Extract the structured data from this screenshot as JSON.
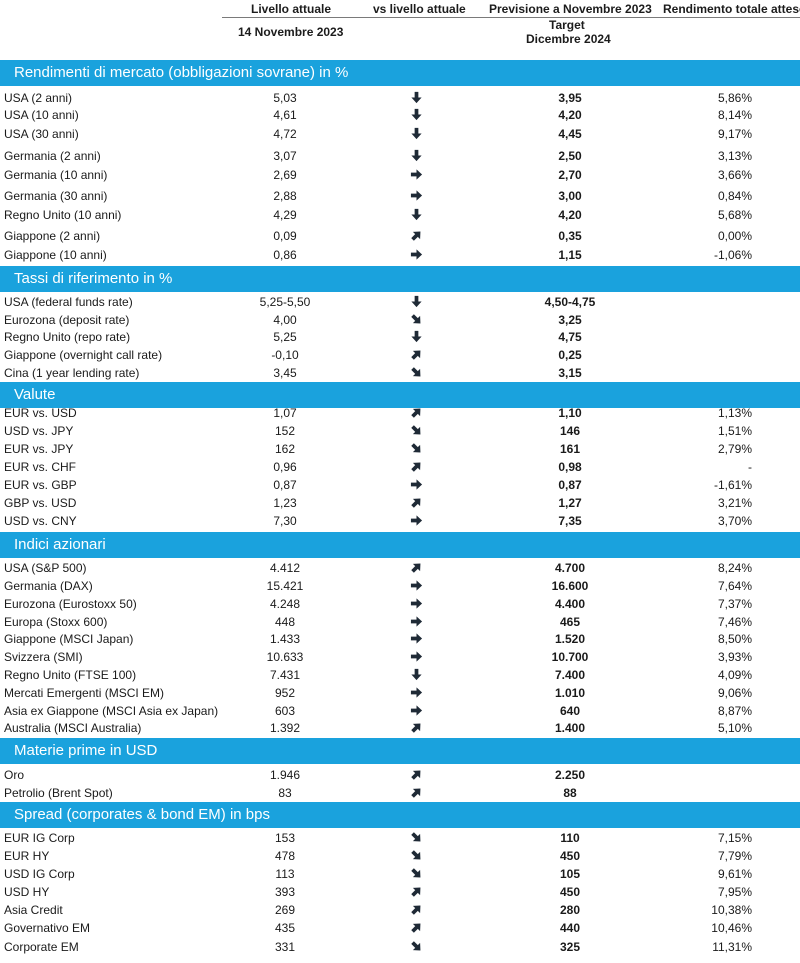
{
  "header": {
    "col_current": "Livello attuale",
    "col_vs": "vs livello attuale",
    "col_forecast": "Previsione a Novembre 2023",
    "col_return": "Rendimento totale atteso",
    "current_date": "14 Novembre 2023",
    "target_line1": "Target",
    "target_line2": "Dicembre 2024"
  },
  "sections": [
    {
      "title": "Rendimenti di mercato (obbligazioni sovrane) in %",
      "rows": [
        {
          "name": "USA (2 anni)",
          "current": "5,03",
          "arrow": "down",
          "target": "3,95",
          "ret": "5,86%"
        },
        {
          "name": "USA (10 anni)",
          "current": "4,61",
          "arrow": "down",
          "target": "4,20",
          "ret": "8,14%"
        },
        {
          "name": "USA (30 anni)",
          "current": "4,72",
          "arrow": "down",
          "target": "4,45",
          "ret": "9,17%"
        },
        {
          "name": "Germania (2 anni)",
          "current": "3,07",
          "arrow": "down",
          "target": "2,50",
          "ret": "3,13%"
        },
        {
          "name": "Germania (10 anni)",
          "current": "2,69",
          "arrow": "right",
          "target": "2,70",
          "ret": "3,66%"
        },
        {
          "name": "Germania (30 anni)",
          "current": "2,88",
          "arrow": "right",
          "target": "3,00",
          "ret": "0,84%"
        },
        {
          "name": "Regno Unito (10 anni)",
          "current": "4,29",
          "arrow": "down",
          "target": "4,20",
          "ret": "5,68%"
        },
        {
          "name": "Giappone (2 anni)",
          "current": "0,09",
          "arrow": "upright",
          "target": "0,35",
          "ret": "0,00%"
        },
        {
          "name": "Giappone (10 anni)",
          "current": "0,86",
          "arrow": "right",
          "target": "1,15",
          "ret": "-1,06%"
        }
      ]
    },
    {
      "title": "Tassi di riferimento in %",
      "rows": [
        {
          "name": "USA (federal funds rate)",
          "current": "5,25-5,50",
          "arrow": "down",
          "target": "4,50-4,75",
          "ret": ""
        },
        {
          "name": "Eurozona (deposit rate)",
          "current": "4,00",
          "arrow": "downright",
          "target": "3,25",
          "ret": ""
        },
        {
          "name": "Regno Unito (repo rate)",
          "current": "5,25",
          "arrow": "down",
          "target": "4,75",
          "ret": ""
        },
        {
          "name": "Giappone (overnight call rate)",
          "current": "-0,10",
          "arrow": "upright",
          "target": "0,25",
          "ret": ""
        },
        {
          "name": "Cina (1 year lending rate)",
          "current": "3,45",
          "arrow": "downright",
          "target": "3,15",
          "ret": ""
        }
      ]
    },
    {
      "title": "Valute",
      "rows": [
        {
          "name": "EUR vs. USD",
          "current": "1,07",
          "arrow": "upright",
          "target": "1,10",
          "ret": "1,13%"
        },
        {
          "name": "USD vs. JPY",
          "current": "152",
          "arrow": "downright",
          "target": "146",
          "ret": "1,51%"
        },
        {
          "name": "EUR vs. JPY",
          "current": "162",
          "arrow": "downright",
          "target": "161",
          "ret": "2,79%"
        },
        {
          "name": "EUR vs. CHF",
          "current": "0,96",
          "arrow": "upright",
          "target": "0,98",
          "ret": "-"
        },
        {
          "name": "EUR vs. GBP",
          "current": "0,87",
          "arrow": "right",
          "target": "0,87",
          "ret": "-1,61%"
        },
        {
          "name": "GBP vs. USD",
          "current": "1,23",
          "arrow": "upright",
          "target": "1,27",
          "ret": "3,21%"
        },
        {
          "name": "USD vs. CNY",
          "current": "7,30",
          "arrow": "right",
          "target": "7,35",
          "ret": "3,70%"
        }
      ]
    },
    {
      "title": "Indici azionari",
      "rows": [
        {
          "name": "USA (S&P 500)",
          "current": "4.412",
          "arrow": "upright",
          "target": "4.700",
          "ret": "8,24%"
        },
        {
          "name": "Germania (DAX)",
          "current": "15.421",
          "arrow": "right",
          "target": "16.600",
          "ret": "7,64%"
        },
        {
          "name": "Eurozona (Eurostoxx 50)",
          "current": "4.248",
          "arrow": "right",
          "target": "4.400",
          "ret": "7,37%"
        },
        {
          "name": "Europa (Stoxx 600)",
          "current": "448",
          "arrow": "right",
          "target": "465",
          "ret": "7,46%"
        },
        {
          "name": "Giappone (MSCI Japan)",
          "current": "1.433",
          "arrow": "right",
          "target": "1.520",
          "ret": "8,50%"
        },
        {
          "name": "Svizzera (SMI)",
          "current": "10.633",
          "arrow": "right",
          "target": "10.700",
          "ret": "3,93%"
        },
        {
          "name": "Regno Unito (FTSE 100)",
          "current": "7.431",
          "arrow": "down",
          "target": "7.400",
          "ret": "4,09%"
        },
        {
          "name": "Mercati Emergenti (MSCI EM)",
          "current": "952",
          "arrow": "right",
          "target": "1.010",
          "ret": "9,06%"
        },
        {
          "name": "Asia ex Giappone (MSCI Asia ex Japan)",
          "current": "603",
          "arrow": "right",
          "target": "640",
          "ret": "8,87%"
        },
        {
          "name": "Australia (MSCI Australia)",
          "current": "1.392",
          "arrow": "upright",
          "target": "1.400",
          "ret": "5,10%"
        }
      ]
    },
    {
      "title": "Materie prime in USD",
      "rows": [
        {
          "name": "Oro",
          "current": "1.946",
          "arrow": "upright",
          "target": "2.250",
          "ret": ""
        },
        {
          "name": "Petrolio (Brent Spot)",
          "current": "83",
          "arrow": "upright",
          "target": "88",
          "ret": ""
        }
      ]
    },
    {
      "title": "Spread (corporates & bond EM) in bps",
      "rows": [
        {
          "name": "EUR IG Corp",
          "current": "153",
          "arrow": "downright",
          "target": "110",
          "ret": "7,15%"
        },
        {
          "name": "EUR HY",
          "current": "478",
          "arrow": "downright",
          "target": "450",
          "ret": "7,79%"
        },
        {
          "name": "USD IG Corp",
          "current": "113",
          "arrow": "downright",
          "target": "105",
          "ret": "9,61%"
        },
        {
          "name": "USD HY",
          "current": "393",
          "arrow": "upright",
          "target": "450",
          "ret": "7,95%"
        },
        {
          "name": "Asia Credit",
          "current": "269",
          "arrow": "upright",
          "target": "280",
          "ret": "10,38%"
        },
        {
          "name": "Governativo EM",
          "current": "435",
          "arrow": "upright",
          "target": "440",
          "ret": "10,46%"
        },
        {
          "name": "Corporate EM",
          "current": "331",
          "arrow": "downright",
          "target": "325",
          "ret": "11,31%"
        }
      ]
    }
  ]
}
